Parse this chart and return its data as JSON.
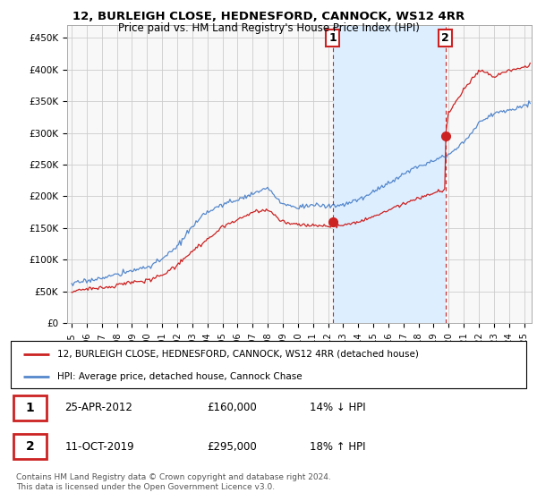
{
  "title": "12, BURLEIGH CLOSE, HEDNESFORD, CANNOCK, WS12 4RR",
  "subtitle": "Price paid vs. HM Land Registry's House Price Index (HPI)",
  "legend_label_red": "12, BURLEIGH CLOSE, HEDNESFORD, CANNOCK, WS12 4RR (detached house)",
  "legend_label_blue": "HPI: Average price, detached house, Cannock Chase",
  "transaction1_date": "25-APR-2012",
  "transaction1_price": "£160,000",
  "transaction1_hpi": "14% ↓ HPI",
  "transaction2_date": "11-OCT-2019",
  "transaction2_price": "£295,000",
  "transaction2_hpi": "18% ↑ HPI",
  "footer": "Contains HM Land Registry data © Crown copyright and database right 2024.\nThis data is licensed under the Open Government Licence v3.0.",
  "ylim": [
    0,
    470000
  ],
  "xlim_start": 1994.7,
  "xlim_end": 2025.5,
  "red_color": "#cc2222",
  "blue_color": "#5588cc",
  "bg_color": "#f8f8f8",
  "highlight_color": "#ddeeff",
  "transaction1_x": 2012.32,
  "transaction1_y": 160000,
  "transaction2_x": 2019.79,
  "transaction2_y": 295000,
  "grid_color": "#cccccc",
  "title_fontsize": 9.5,
  "subtitle_fontsize": 8.5
}
